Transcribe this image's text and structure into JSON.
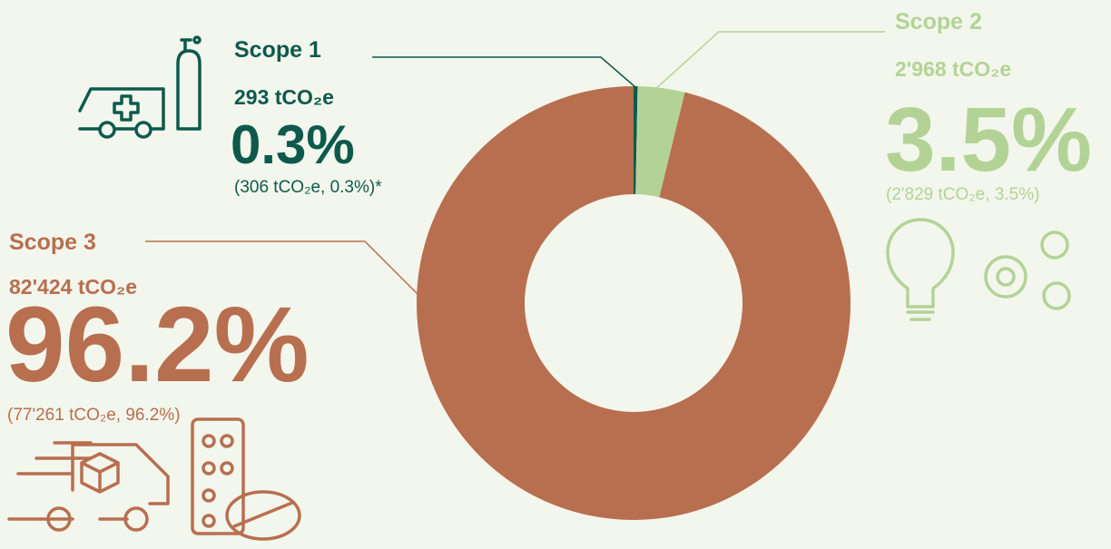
{
  "chart_data": {
    "type": "pie",
    "categories": [
      "Scope 1",
      "Scope 2",
      "Scope 3"
    ],
    "values": [
      0.3,
      3.5,
      96.2
    ],
    "value_labels": [
      "0.3%",
      "3.5%",
      "96.2%"
    ],
    "colors": [
      "#0d5a4c",
      "#b3d396",
      "#b86f4f"
    ],
    "emissions": [
      "293 tCO₂e",
      "2'968 tCO₂e",
      "82'424 tCO₂e"
    ],
    "previous": [
      "(306 tCO₂e, 0.3%)*",
      "(2'829 tCO₂e, 3.5%)",
      "(77'261 tCO₂e, 96.2%)"
    ]
  }
}
